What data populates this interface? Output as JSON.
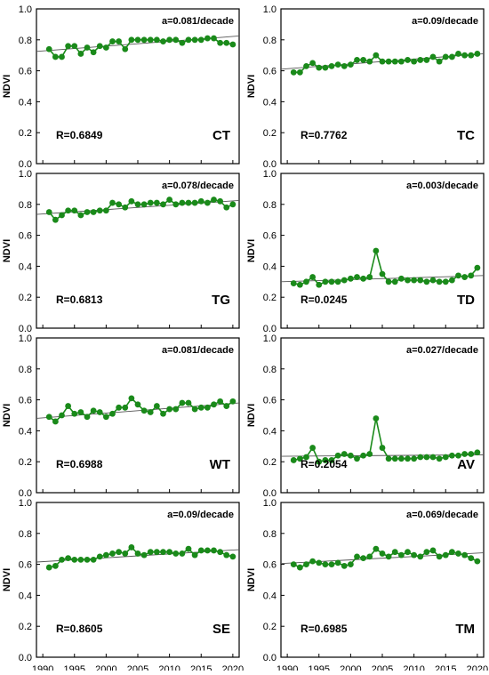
{
  "figure": {
    "ylabel": "NDVI",
    "x_ticks": [
      1990,
      1995,
      2000,
      2005,
      2010,
      2015,
      2020
    ],
    "y_ticks": [
      0.0,
      0.2,
      0.4,
      0.6,
      0.8,
      1.0
    ],
    "y_tick_labels": [
      "0.0",
      "0.2",
      "0.4",
      "0.6",
      "0.8",
      "1.0"
    ],
    "series_color": "#1a8a1a",
    "trend_color": "#555555"
  },
  "chart_data": [
    {
      "type": "line",
      "code": "CT",
      "slope_label": "a=0.081/decade",
      "r_label": "R=0.6849",
      "xlim": [
        1989,
        2021
      ],
      "ylim": [
        0,
        1
      ],
      "x": [
        1991,
        1992,
        1993,
        1994,
        1995,
        1996,
        1997,
        1998,
        1999,
        2000,
        2001,
        2002,
        2003,
        2004,
        2005,
        2006,
        2007,
        2008,
        2009,
        2010,
        2011,
        2012,
        2013,
        2014,
        2015,
        2016,
        2017,
        2018,
        2019,
        2020
      ],
      "values": [
        0.74,
        0.69,
        0.69,
        0.76,
        0.76,
        0.71,
        0.75,
        0.72,
        0.76,
        0.75,
        0.79,
        0.79,
        0.74,
        0.8,
        0.8,
        0.8,
        0.8,
        0.8,
        0.79,
        0.8,
        0.8,
        0.78,
        0.8,
        0.8,
        0.8,
        0.81,
        0.81,
        0.78,
        0.78,
        0.77
      ],
      "trend": [
        0.725,
        0.825
      ]
    },
    {
      "type": "line",
      "code": "TC",
      "slope_label": "a=0.09/decade",
      "r_label": "R=0.7762",
      "xlim": [
        1989,
        2021
      ],
      "ylim": [
        0,
        1
      ],
      "x": [
        1991,
        1992,
        1993,
        1994,
        1995,
        1996,
        1997,
        1998,
        1999,
        2000,
        2001,
        2002,
        2003,
        2004,
        2005,
        2006,
        2007,
        2008,
        2009,
        2010,
        2011,
        2012,
        2013,
        2014,
        2015,
        2016,
        2017,
        2018,
        2019,
        2020
      ],
      "values": [
        0.59,
        0.59,
        0.63,
        0.65,
        0.62,
        0.62,
        0.63,
        0.64,
        0.63,
        0.64,
        0.67,
        0.67,
        0.66,
        0.7,
        0.66,
        0.66,
        0.66,
        0.66,
        0.67,
        0.66,
        0.67,
        0.67,
        0.69,
        0.66,
        0.69,
        0.69,
        0.71,
        0.7,
        0.7,
        0.71
      ],
      "trend": [
        0.61,
        0.71
      ]
    },
    {
      "type": "line",
      "code": "TG",
      "slope_label": "a=0.078/decade",
      "r_label": "R=0.6813",
      "xlim": [
        1989,
        2021
      ],
      "ylim": [
        0,
        1
      ],
      "x": [
        1991,
        1992,
        1993,
        1994,
        1995,
        1996,
        1997,
        1998,
        1999,
        2000,
        2001,
        2002,
        2003,
        2004,
        2005,
        2006,
        2007,
        2008,
        2009,
        2010,
        2011,
        2012,
        2013,
        2014,
        2015,
        2016,
        2017,
        2018,
        2019,
        2020
      ],
      "values": [
        0.75,
        0.7,
        0.73,
        0.76,
        0.76,
        0.73,
        0.75,
        0.75,
        0.76,
        0.76,
        0.81,
        0.8,
        0.78,
        0.82,
        0.8,
        0.8,
        0.81,
        0.81,
        0.8,
        0.83,
        0.8,
        0.81,
        0.81,
        0.81,
        0.82,
        0.81,
        0.83,
        0.82,
        0.78,
        0.8
      ],
      "trend": [
        0.735,
        0.825
      ]
    },
    {
      "type": "line",
      "code": "TD",
      "slope_label": "a=0.003/decade",
      "r_label": "R=0.0245",
      "xlim": [
        1989,
        2021
      ],
      "ylim": [
        0,
        1
      ],
      "x": [
        1991,
        1992,
        1993,
        1994,
        1995,
        1996,
        1997,
        1998,
        1999,
        2000,
        2001,
        2002,
        2003,
        2004,
        2005,
        2006,
        2007,
        2008,
        2009,
        2010,
        2011,
        2012,
        2013,
        2014,
        2015,
        2016,
        2017,
        2018,
        2019,
        2020
      ],
      "values": [
        0.29,
        0.28,
        0.3,
        0.33,
        0.28,
        0.3,
        0.3,
        0.3,
        0.31,
        0.32,
        0.33,
        0.32,
        0.33,
        0.5,
        0.35,
        0.3,
        0.3,
        0.32,
        0.31,
        0.31,
        0.31,
        0.3,
        0.31,
        0.3,
        0.3,
        0.31,
        0.34,
        0.33,
        0.34,
        0.39
      ],
      "trend": [
        0.3,
        0.34
      ]
    },
    {
      "type": "line",
      "code": "WT",
      "slope_label": "a=0.081/decade",
      "r_label": "R=0.6988",
      "xlim": [
        1989,
        2021
      ],
      "ylim": [
        0,
        1
      ],
      "x": [
        1991,
        1992,
        1993,
        1994,
        1995,
        1996,
        1997,
        1998,
        1999,
        2000,
        2001,
        2002,
        2003,
        2004,
        2005,
        2006,
        2007,
        2008,
        2009,
        2010,
        2011,
        2012,
        2013,
        2014,
        2015,
        2016,
        2017,
        2018,
        2019,
        2020
      ],
      "values": [
        0.49,
        0.46,
        0.5,
        0.56,
        0.51,
        0.52,
        0.49,
        0.53,
        0.52,
        0.49,
        0.51,
        0.55,
        0.55,
        0.61,
        0.57,
        0.53,
        0.52,
        0.56,
        0.51,
        0.54,
        0.54,
        0.58,
        0.58,
        0.54,
        0.55,
        0.55,
        0.57,
        0.59,
        0.56,
        0.59
      ],
      "trend": [
        0.48,
        0.58
      ]
    },
    {
      "type": "line",
      "code": "AV",
      "slope_label": "a=0.027/decade",
      "r_label": "R=0.2054",
      "xlim": [
        1989,
        2021
      ],
      "ylim": [
        0,
        1
      ],
      "x": [
        1991,
        1992,
        1993,
        1994,
        1995,
        1996,
        1997,
        1998,
        1999,
        2000,
        2001,
        2002,
        2003,
        2004,
        2005,
        2006,
        2007,
        2008,
        2009,
        2010,
        2011,
        2012,
        2013,
        2014,
        2015,
        2016,
        2017,
        2018,
        2019,
        2020
      ],
      "values": [
        0.21,
        0.22,
        0.23,
        0.29,
        0.2,
        0.21,
        0.21,
        0.24,
        0.25,
        0.24,
        0.22,
        0.24,
        0.25,
        0.48,
        0.29,
        0.22,
        0.22,
        0.22,
        0.22,
        0.22,
        0.23,
        0.23,
        0.23,
        0.22,
        0.23,
        0.24,
        0.24,
        0.25,
        0.25,
        0.26
      ],
      "trend": [
        0.235,
        0.245
      ]
    },
    {
      "type": "line",
      "code": "SE",
      "slope_label": "a=0.09/decade",
      "r_label": "R=0.8605",
      "xlim": [
        1989,
        2021
      ],
      "ylim": [
        0,
        1
      ],
      "x": [
        1991,
        1992,
        1993,
        1994,
        1995,
        1996,
        1997,
        1998,
        1999,
        2000,
        2001,
        2002,
        2003,
        2004,
        2005,
        2006,
        2007,
        2008,
        2009,
        2010,
        2011,
        2012,
        2013,
        2014,
        2015,
        2016,
        2017,
        2018,
        2019,
        2020
      ],
      "values": [
        0.58,
        0.59,
        0.63,
        0.64,
        0.63,
        0.63,
        0.63,
        0.63,
        0.65,
        0.66,
        0.67,
        0.68,
        0.67,
        0.71,
        0.67,
        0.66,
        0.68,
        0.68,
        0.68,
        0.68,
        0.67,
        0.67,
        0.7,
        0.66,
        0.69,
        0.69,
        0.69,
        0.68,
        0.66,
        0.65
      ],
      "trend": [
        0.615,
        0.695
      ]
    },
    {
      "type": "line",
      "code": "TM",
      "slope_label": "a=0.069/decade",
      "r_label": "R=0.6985",
      "xlim": [
        1989,
        2021
      ],
      "ylim": [
        0,
        1
      ],
      "x": [
        1991,
        1992,
        1993,
        1994,
        1995,
        1996,
        1997,
        1998,
        1999,
        2000,
        2001,
        2002,
        2003,
        2004,
        2005,
        2006,
        2007,
        2008,
        2009,
        2010,
        2011,
        2012,
        2013,
        2014,
        2015,
        2016,
        2017,
        2018,
        2019,
        2020
      ],
      "values": [
        0.6,
        0.58,
        0.6,
        0.62,
        0.61,
        0.6,
        0.6,
        0.61,
        0.59,
        0.6,
        0.65,
        0.64,
        0.65,
        0.7,
        0.67,
        0.65,
        0.68,
        0.66,
        0.68,
        0.66,
        0.65,
        0.68,
        0.69,
        0.65,
        0.66,
        0.68,
        0.67,
        0.66,
        0.64,
        0.62
      ],
      "trend": [
        0.605,
        0.675
      ]
    }
  ]
}
